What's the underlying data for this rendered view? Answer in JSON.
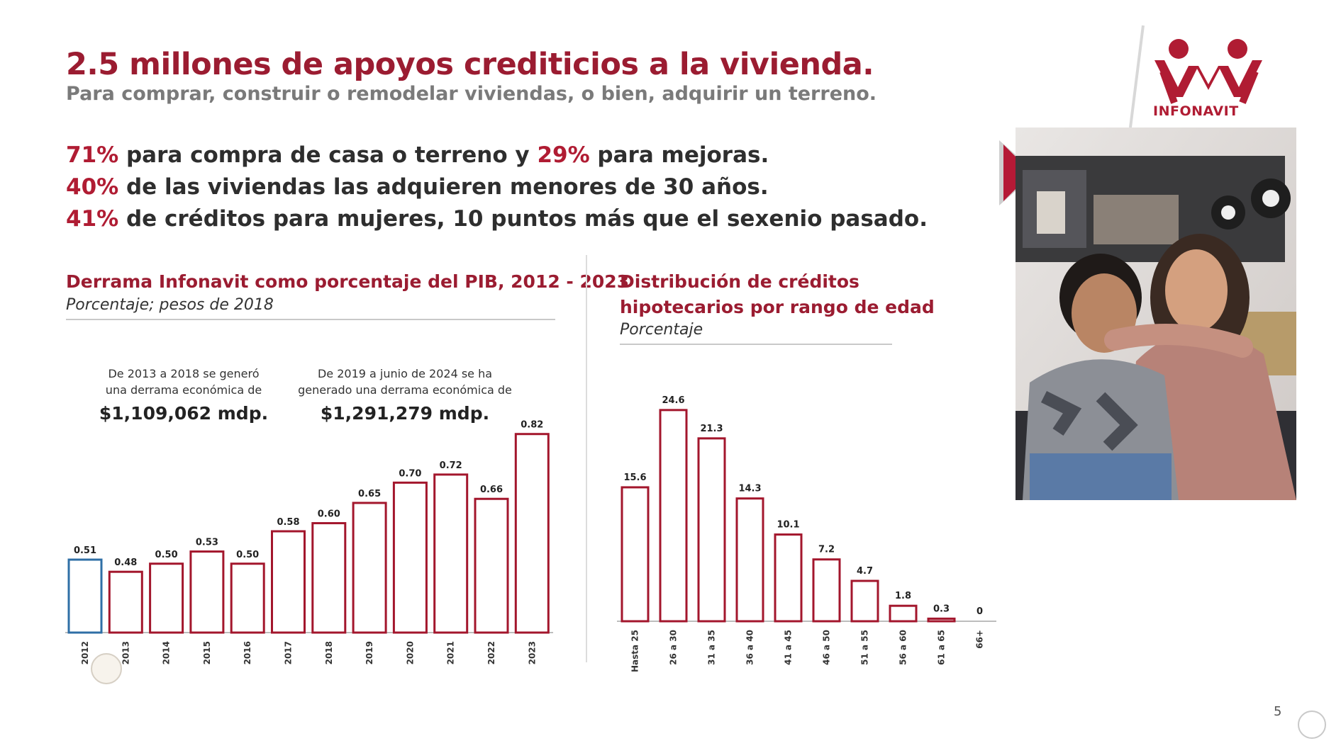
{
  "title": "2.5 millones de apoyos crediticios a la vivienda.",
  "subtitle": "Para comprar, construir o remodelar viviendas, o bien, adquirir un terreno.",
  "stats": {
    "line1": {
      "p1": "71%",
      "t1": " para compra de casa o terreno y ",
      "p2": "29%",
      "t2": " para mejoras."
    },
    "line2": {
      "p1": "40%",
      "t1": " de las viviendas las adquieren menores de 30 años."
    },
    "line3": {
      "p1": "41%",
      "t1": " de créditos para mujeres, 10 puntos más que el sexenio pasado."
    }
  },
  "brand": {
    "name": "INFONAVIT",
    "accent": "#b01c33",
    "bar_stroke": "#a3162c",
    "highlight_stroke": "#2f6fa6"
  },
  "page_number": "5",
  "chart_data": [
    {
      "type": "bar",
      "title": "Derrama Infonavit como porcentaje del PIB, 2012 - 2023",
      "subtitle": "Porcentaje; pesos de 2018",
      "categories": [
        "2012",
        "2013",
        "2014",
        "2015",
        "2016",
        "2017",
        "2018",
        "2019",
        "2020",
        "2021",
        "2022",
        "2023"
      ],
      "values": [
        0.51,
        0.48,
        0.5,
        0.53,
        0.5,
        0.58,
        0.6,
        0.65,
        0.7,
        0.72,
        0.66,
        0.82
      ],
      "value_labels": [
        "0.51",
        "0.48",
        "0.50",
        "0.53",
        "0.50",
        "0.58",
        "0.60",
        "0.65",
        "0.70",
        "0.72",
        "0.66",
        "0.82"
      ],
      "baseline": 0.33,
      "highlighted_category": "2012",
      "annotations": [
        {
          "text1": "De 2013 a 2018 se generó",
          "text2": "una derrama económica de",
          "amount": "$1,109,062 mdp."
        },
        {
          "text1": "De 2019 a junio de 2024 se ha",
          "text2": "generado una derrama económica de",
          "amount": "$1,291,279 mdp."
        }
      ]
    },
    {
      "type": "bar",
      "title_line1": "Distribución de créditos",
      "title_line2": "hipotecarios por rango de edad",
      "subtitle": "Porcentaje",
      "categories": [
        "Hasta 25",
        "26 a 30",
        "31 a 35",
        "36 a 40",
        "41 a 45",
        "46 a 50",
        "51 a 55",
        "56 a 60",
        "61 a 65",
        "66+"
      ],
      "values": [
        15.6,
        24.6,
        21.3,
        14.3,
        10.1,
        7.2,
        4.7,
        1.8,
        0.3,
        0
      ],
      "value_labels": [
        "15.6",
        "24.6",
        "21.3",
        "14.3",
        "10.1",
        "7.2",
        "4.7",
        "1.8",
        "0.3",
        "0"
      ],
      "ylim": [
        0,
        25
      ]
    }
  ]
}
